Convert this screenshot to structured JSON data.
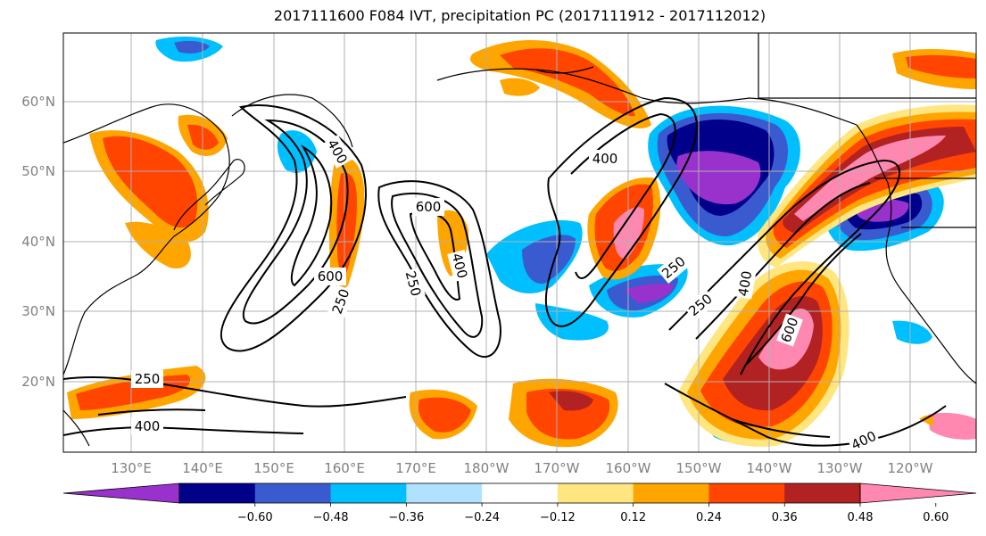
{
  "title": "2017111600 F084 IVT, precipitation PC (2017111912 - 2017112012)",
  "lat_labels": [
    "60°N",
    "50°N",
    "40°N",
    "30°N",
    "20°N"
  ],
  "lon_labels": [
    "130°E",
    "140°E",
    "150°E",
    "160°E",
    "170°E",
    "180°W",
    "170°W",
    "160°W",
    "150°W",
    "140°W",
    "130°W",
    "120°W"
  ],
  "contour_labels": [
    "400",
    "400",
    "600",
    "400",
    "600",
    "250",
    "250",
    "250",
    "400",
    "250",
    "400",
    "600",
    "400",
    "250",
    "400"
  ],
  "colorbar": {
    "colors": [
      "#9932CC",
      "#00008B",
      "#3A5BD0",
      "#00BFFF",
      "#B0E2FF",
      "#FFFFFF",
      "#FFE680",
      "#FFA500",
      "#FF4500",
      "#B22222",
      "#FF88B0"
    ],
    "ticks": [
      "−0.60",
      "−0.48",
      "−0.36",
      "−0.24",
      "−0.12",
      "0.12",
      "0.24",
      "0.36",
      "0.48",
      "0.60"
    ]
  }
}
